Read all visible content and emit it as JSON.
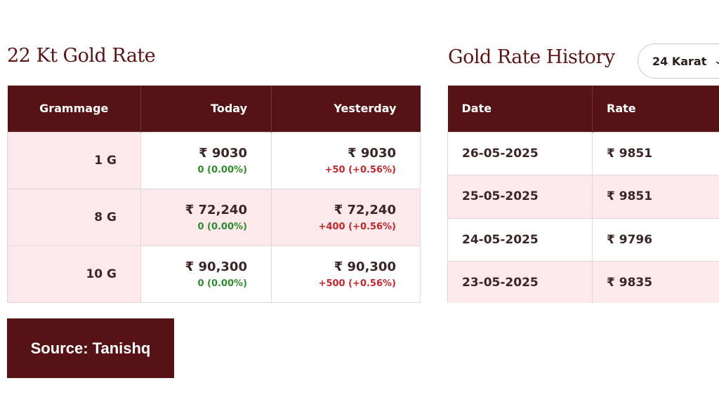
{
  "rate_section": {
    "title": "22 Kt Gold Rate",
    "headers": {
      "grammage": "Grammage",
      "today": "Today",
      "yesterday": "Yesterday"
    },
    "rows": [
      {
        "grammage": "1 G",
        "today": "₹ 9030",
        "today_change": "0 (0.00%)",
        "yesterday": "₹ 9030",
        "yesterday_change": "+50 (+0.56%)"
      },
      {
        "grammage": "8 G",
        "today": "₹ 72,240",
        "today_change": "0 (0.00%)",
        "yesterday": "₹ 72,240",
        "yesterday_change": "+400 (+0.56%)"
      },
      {
        "grammage": "10 G",
        "today": "₹ 90,300",
        "today_change": "0 (0.00%)",
        "yesterday": "₹ 90,300",
        "yesterday_change": "+500 (+0.56%)"
      }
    ],
    "colors": {
      "header_bg": "#561315",
      "alt_row_bg": "#fbe9eb",
      "positive": "#c0272d",
      "neutral": "#2e8b2e"
    }
  },
  "history_section": {
    "title": "Gold Rate History",
    "karat_select": {
      "selected": "24 Karat",
      "icon": "chevron-down-icon"
    },
    "headers": {
      "date": "Date",
      "rate": "Rate"
    },
    "rows": [
      {
        "date": "26-05-2025",
        "rate": "₹ 9851"
      },
      {
        "date": "25-05-2025",
        "rate": "₹ 9851"
      },
      {
        "date": "24-05-2025",
        "rate": "₹ 9796"
      },
      {
        "date": "23-05-2025",
        "rate": "₹ 9835"
      }
    ]
  },
  "source_badge": {
    "label": "Source: Tanishq"
  }
}
